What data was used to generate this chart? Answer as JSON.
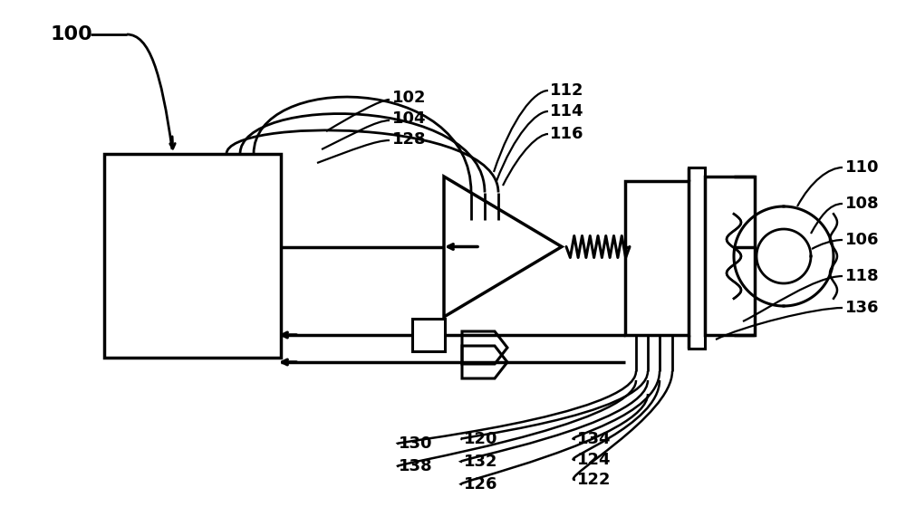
{
  "bg_color": "#ffffff",
  "line_color": "#000000",
  "figsize": [
    10.0,
    5.6
  ],
  "dpi": 100
}
